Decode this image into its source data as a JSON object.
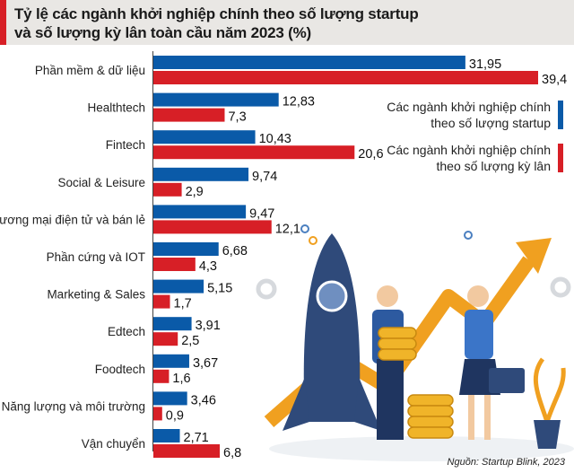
{
  "title": "Tỷ lệ các ngành khởi nghiệp chính theo số lượng startup và số lượng kỳ lân toàn cầu năm 2023 (%)",
  "title_lines": [
    "Tỷ lệ các ngành khởi nghiệp chính theo số lượng startup",
    "và số lượng kỳ lân toàn cầu năm 2023 (%)"
  ],
  "source": "Nguồn: Startup Blink, 2023",
  "colors": {
    "startup": "#0a5aa8",
    "unicorn": "#d71f26",
    "accent": "#d71f26"
  },
  "chart_data": {
    "type": "bar",
    "orientation": "horizontal",
    "title": "Tỷ lệ các ngành khởi nghiệp chính theo số lượng startup và số lượng kỳ lân toàn cầu năm 2023 (%)",
    "categories": [
      "Phần mềm & dữ liệu",
      "Healthtech",
      "Fintech",
      "Social & Leisure",
      "Thương mại điện tử và bán lẻ",
      "Phần cứng và IOT",
      "Marketing & Sales",
      "Edtech",
      "Foodtech",
      "Năng lượng và môi trường",
      "Vận chuyển"
    ],
    "series": [
      {
        "name": "Các ngành khởi nghiệp chính theo số lượng startup",
        "name_lines": [
          "Các ngành khởi nghiệp chính",
          "theo số lượng startup"
        ],
        "color": "#0a5aa8",
        "values": [
          31.95,
          12.83,
          10.43,
          9.74,
          9.47,
          6.68,
          5.15,
          3.91,
          3.67,
          3.46,
          2.71
        ],
        "labels": [
          "31,95",
          "12,83",
          "10,43",
          "9,74",
          "9,47",
          "6,68",
          "5,15",
          "3,91",
          "3,67",
          "3,46",
          "2,71"
        ]
      },
      {
        "name": "Các ngành khởi nghiệp chính theo số lượng kỳ lân",
        "name_lines": [
          "Các ngành khởi nghiệp chính",
          "theo số lượng kỳ lân"
        ],
        "color": "#d71f26",
        "values": [
          39.4,
          7.3,
          20.6,
          2.9,
          12.1,
          4.3,
          1.7,
          2.5,
          1.6,
          0.9,
          6.8
        ],
        "labels": [
          "39,4",
          "7,3",
          "20,6",
          "2,9",
          "12,1",
          "4,3",
          "1,7",
          "2,5",
          "1,6",
          "0,9",
          "6,8"
        ]
      }
    ],
    "xlim": [
      0,
      40
    ],
    "grid": false,
    "legend": "right"
  }
}
